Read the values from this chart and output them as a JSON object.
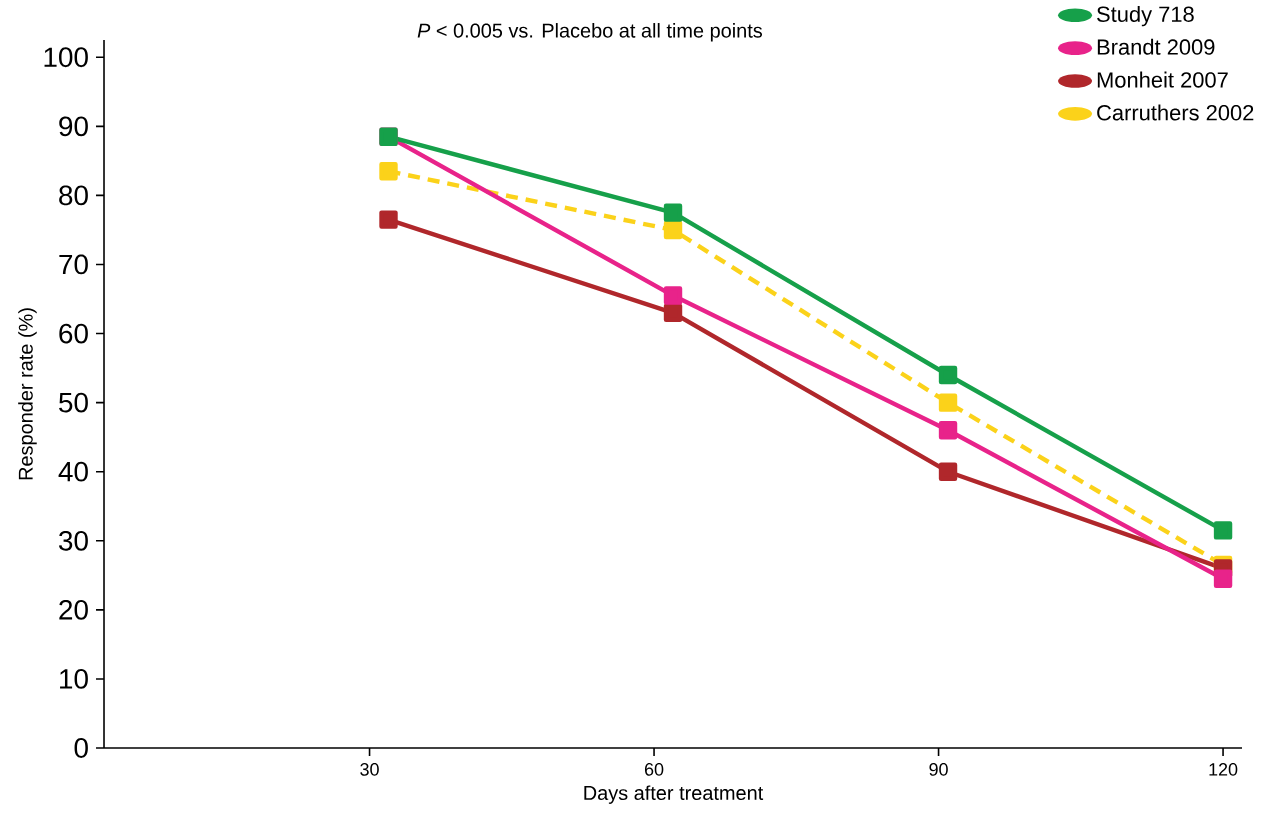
{
  "chart_data": {
    "type": "line",
    "xlabel": "Days after treatment",
    "ylabel": "Responder rate (%)",
    "annotations": [
      "*P* < 0.005 vs. Placebo at all time points"
    ],
    "x": [
      32,
      62,
      91,
      120
    ],
    "series": [
      {
        "name": "Study 718",
        "color": "#16a04a",
        "values": [
          88.5,
          77.5,
          54,
          31.5
        ]
      },
      {
        "name": "Brandt 2009",
        "color": "#e8238a",
        "values": [
          88.5,
          65.5,
          46,
          24.5
        ]
      },
      {
        "name": "Monheit 2007",
        "color": "#b0272b",
        "values": [
          76.5,
          63,
          40,
          26
        ]
      },
      {
        "name": "Carruthers 2002",
        "color": "#fbd21a",
        "values": [
          83.5,
          75,
          50,
          26.5
        ],
        "line_style": "dashed"
      }
    ],
    "xlim": [
      2,
      122
    ],
    "xticks": [
      30,
      60,
      90,
      120
    ],
    "ylim": [
      0,
      102.5
    ],
    "yticks": [
      0,
      10,
      20,
      30,
      40,
      50,
      60,
      70,
      80,
      90,
      100
    ],
    "marker": "square",
    "legend": "top right",
    "grid": false
  }
}
